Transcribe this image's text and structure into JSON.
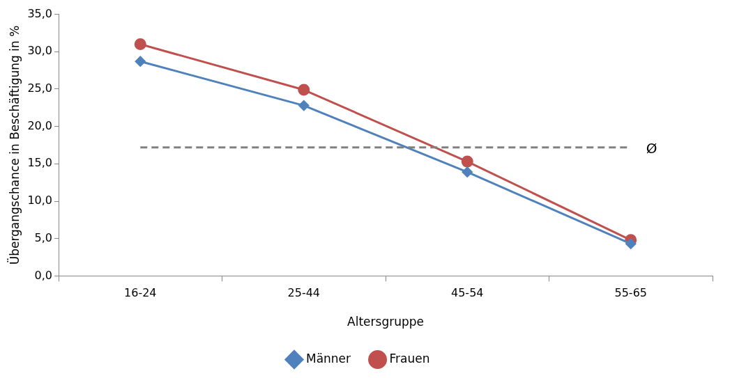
{
  "chart_data": {
    "type": "line",
    "xlabel": "Altersgruppe",
    "ylabel": "Übergangschance in Beschäftigung in %",
    "categories": [
      "16-24",
      "25-44",
      "45-54",
      "55-65"
    ],
    "series": [
      {
        "name": "Männer",
        "color": "#4f81bd",
        "marker": "diamond",
        "values": [
          28.7,
          22.8,
          13.9,
          4.3
        ]
      },
      {
        "name": "Frauen",
        "color": "#c0504d",
        "marker": "circle",
        "values": [
          31.0,
          24.9,
          15.3,
          4.8
        ]
      }
    ],
    "ylim": [
      0,
      35
    ],
    "yticks": [
      {
        "value": 0,
        "label": "0,0"
      },
      {
        "value": 5,
        "label": "5,0"
      },
      {
        "value": 10,
        "label": "10,0"
      },
      {
        "value": 15,
        "label": "15,0"
      },
      {
        "value": 20,
        "label": "20,0"
      },
      {
        "value": 25,
        "label": "25,0"
      },
      {
        "value": 30,
        "label": "30,0"
      },
      {
        "value": 35,
        "label": "35,0"
      }
    ],
    "ref_lines": [
      {
        "axis": "y",
        "value": 17.2,
        "label": "Ø",
        "color": "#808080",
        "line_style": "dashed"
      }
    ],
    "grid": false,
    "legend": "bottom",
    "line_style": "solid"
  }
}
